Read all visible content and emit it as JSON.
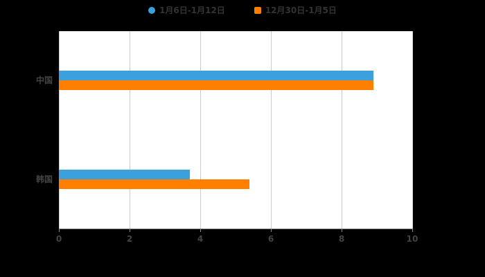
{
  "legend": {
    "items": [
      {
        "label": "1月6日-1月12日",
        "color": "#3BA0DB",
        "shape": "circle"
      },
      {
        "label": "12月30日-1月5日",
        "color": "#FF8000",
        "shape": "square"
      }
    ]
  },
  "chart_data": {
    "type": "bar",
    "orientation": "horizontal",
    "title": "",
    "xlabel": "",
    "ylabel": "",
    "categories": [
      "中国",
      "韩国"
    ],
    "series": [
      {
        "name": "1月6日-1月12日",
        "color": "#3BA0DB",
        "values": [
          8.9,
          3.7
        ]
      },
      {
        "name": "12月30日-1月5日",
        "color": "#FF8000",
        "values": [
          8.9,
          5.4
        ]
      }
    ],
    "xlim": [
      0,
      10
    ],
    "xticks": [
      0,
      2,
      4,
      6,
      8,
      10
    ],
    "grid": "vertical-gridlines-on",
    "legend_position": "top-center",
    "plot_background": "#FFFFFF",
    "page_background": "#000000"
  }
}
